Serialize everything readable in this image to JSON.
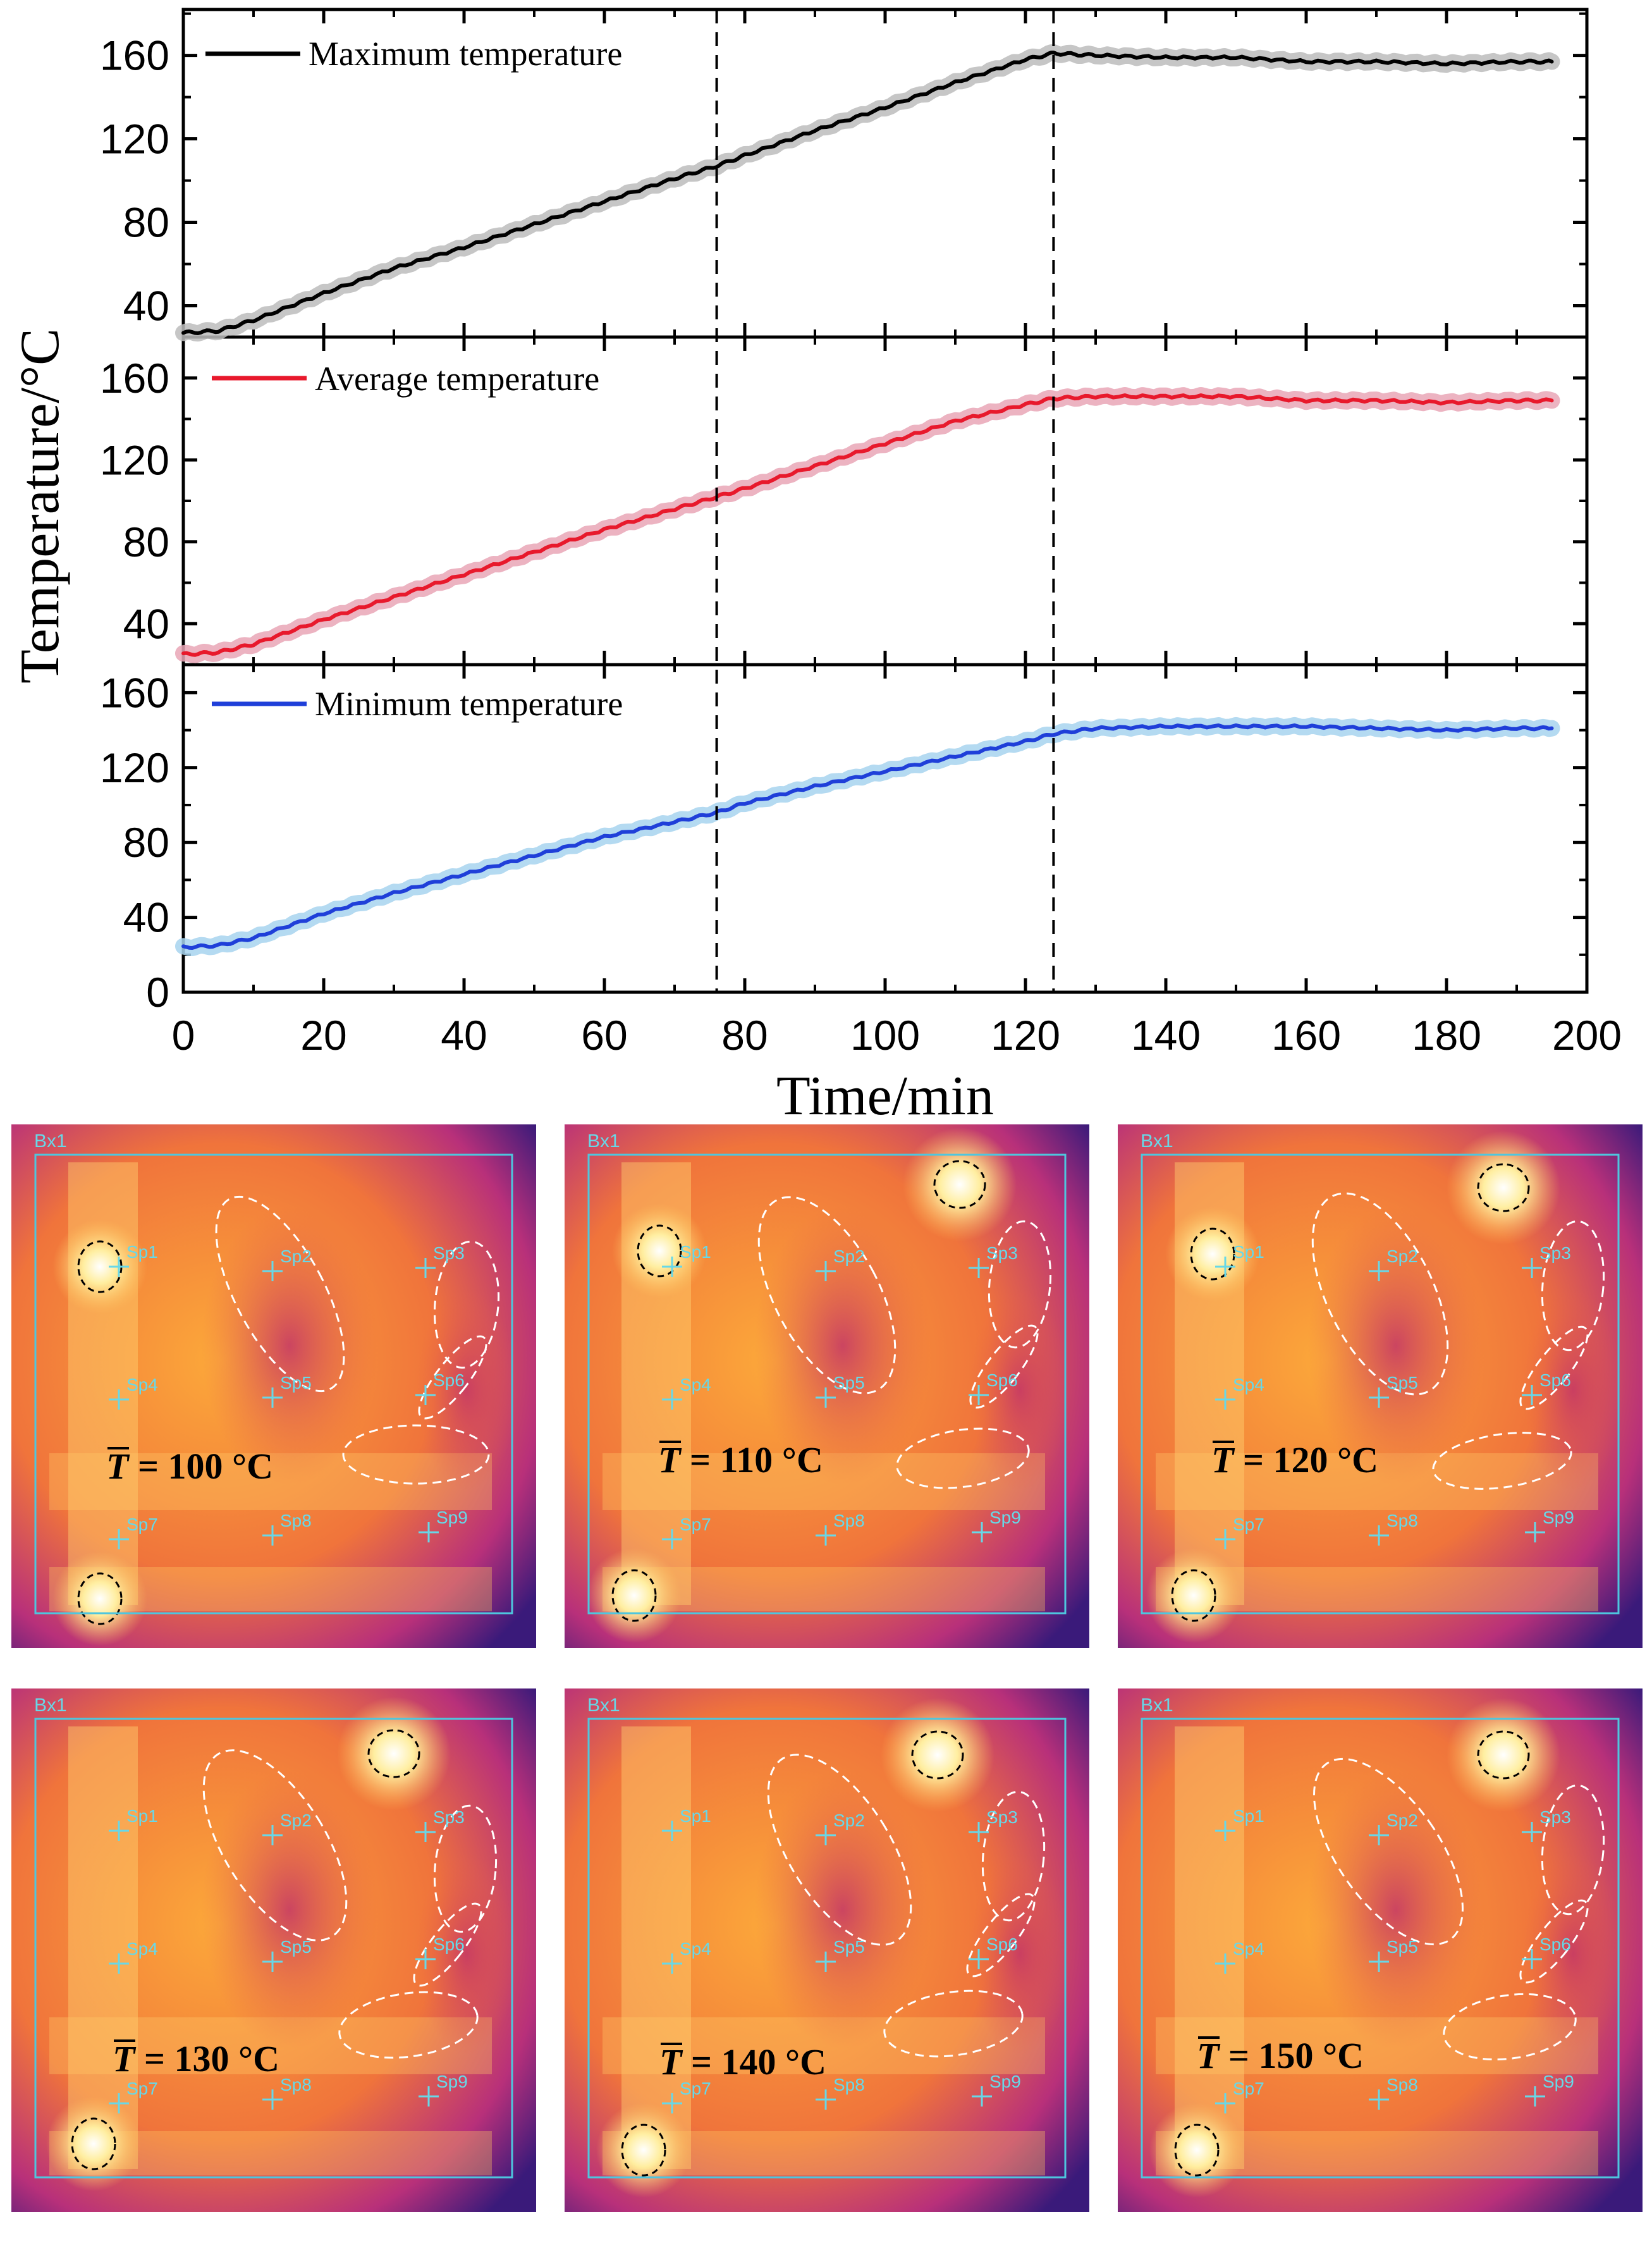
{
  "chart_data": [
    {
      "type": "line",
      "panel": "top",
      "legend": "Maximum temperature",
      "color": "#000000",
      "band_color": "#bcbcbc",
      "ylim": [
        25,
        182
      ],
      "yticks": [
        "40",
        "80",
        "120",
        "160"
      ],
      "x": [
        0,
        5,
        10,
        20,
        30,
        40,
        50,
        60,
        70,
        76,
        80,
        90,
        100,
        110,
        120,
        124,
        130,
        140,
        150,
        160,
        170,
        180,
        190,
        195
      ],
      "y": [
        27,
        28,
        33,
        46,
        58,
        68,
        79,
        90,
        101,
        107,
        112,
        124,
        135,
        147,
        158,
        161,
        160,
        159,
        159,
        157,
        157,
        156,
        157,
        157
      ]
    },
    {
      "type": "line",
      "panel": "middle",
      "legend": "Average temperature",
      "color": "#e8192c",
      "band_color": "#e9a6b6",
      "ylim": [
        20,
        180
      ],
      "yticks": [
        "40",
        "80",
        "120",
        "160"
      ],
      "x": [
        0,
        5,
        10,
        20,
        30,
        40,
        50,
        60,
        70,
        76,
        80,
        90,
        100,
        110,
        120,
        124,
        130,
        140,
        150,
        160,
        170,
        180,
        190,
        195
      ],
      "y": [
        25,
        26,
        30,
        42,
        53,
        64,
        75,
        86,
        96,
        102,
        106,
        117,
        128,
        139,
        147,
        150,
        151,
        151,
        151,
        149,
        149,
        148,
        149,
        149
      ]
    },
    {
      "type": "line",
      "panel": "bottom",
      "legend": "Minimum temperature",
      "color": "#1f3fd9",
      "band_color": "#a7d4ee",
      "ylim": [
        0,
        175
      ],
      "yticks": [
        "0",
        "40",
        "80",
        "120",
        "160"
      ],
      "x": [
        0,
        5,
        10,
        20,
        30,
        40,
        50,
        60,
        70,
        76,
        80,
        90,
        100,
        110,
        120,
        124,
        130,
        140,
        150,
        160,
        170,
        180,
        190,
        195
      ],
      "y": [
        24,
        25,
        29,
        42,
        53,
        63,
        73,
        83,
        91,
        96,
        101,
        110,
        118,
        126,
        134,
        138,
        141,
        142,
        142,
        142,
        141,
        140,
        141,
        141
      ]
    }
  ],
  "x_axis": {
    "label": "Time/min",
    "xlim": [
      0,
      200
    ],
    "ticks": [
      "0",
      "20",
      "40",
      "60",
      "80",
      "100",
      "120",
      "140",
      "160",
      "180",
      "200"
    ]
  },
  "y_axis_label": "Temperature/°C",
  "reference_lines_min": [
    76,
    124
  ],
  "thermal_images": [
    {
      "caption_symbol": "T",
      "caption_value": "= 100 °C"
    },
    {
      "caption_symbol": "T",
      "caption_value": "= 110 °C"
    },
    {
      "caption_symbol": "T",
      "caption_value": "= 120 °C"
    },
    {
      "caption_symbol": "T",
      "caption_value": "= 130 °C"
    },
    {
      "caption_symbol": "T",
      "caption_value": "= 140 °C"
    },
    {
      "caption_symbol": "T",
      "caption_value": "= 150 °C"
    }
  ],
  "thermal_labels": {
    "box": "Bx1",
    "spots": [
      "Sp1",
      "Sp2",
      "Sp3",
      "Sp4",
      "Sp5",
      "Sp6",
      "Sp7",
      "Sp8",
      "Sp9"
    ]
  }
}
